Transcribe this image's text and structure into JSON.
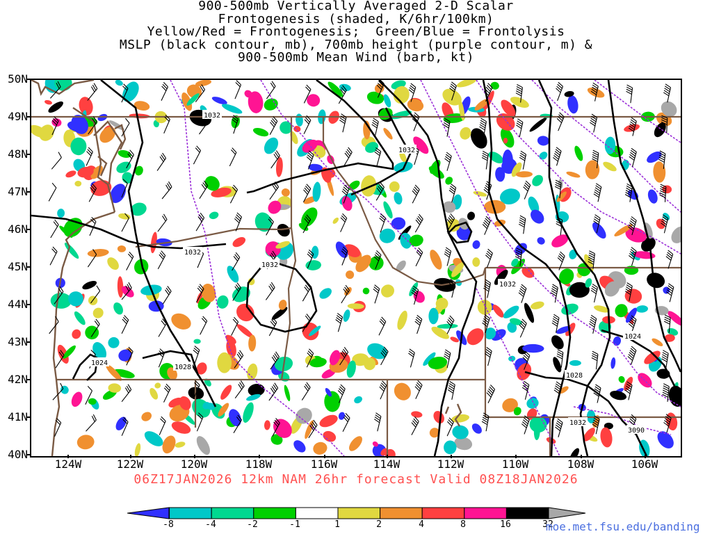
{
  "title_lines": [
    "900-500mb Vertically Averaged 2-D Scalar",
    "Frontogenesis (shaded, K/6hr/100km)",
    "Yellow/Red = Frontogenesis;  Green/Blue = Frontolysis",
    "MSLP (black contour, mb), 700mb height (purple contour, m) &",
    "900-500mb Mean Wind (barb, kt)"
  ],
  "lat_labels": [
    "50N",
    "49N",
    "48N",
    "47N",
    "46N",
    "45N",
    "44N",
    "43N",
    "42N",
    "41N",
    "40N"
  ],
  "lon_labels": [
    "124W",
    "122W",
    "120W",
    "118W",
    "116W",
    "114W",
    "112W",
    "110W",
    "108W",
    "106W"
  ],
  "run_info": "06Z17JAN2026 12km NAM 26hr forecast Valid 08Z18JAN2026",
  "colorbar": {
    "labels": [
      "-8",
      "-4",
      "-2",
      "-1",
      "1",
      "2",
      "4",
      "8",
      "16",
      "32"
    ],
    "colors": [
      "#3030ff",
      "#00c8c8",
      "#00d890",
      "#00d000",
      "#ffffff",
      "#e0d840",
      "#f09030",
      "#ff4040",
      "#ff1493",
      "#000000",
      "#a8a8a8"
    ]
  },
  "isobar_labels": [
    "1032",
    "1032",
    "1032",
    "1032",
    "1024",
    "1028",
    "1032",
    "1028",
    "1024",
    "1032",
    "3090"
  ],
  "credit": "moe.met.fsu.edu/banding"
}
